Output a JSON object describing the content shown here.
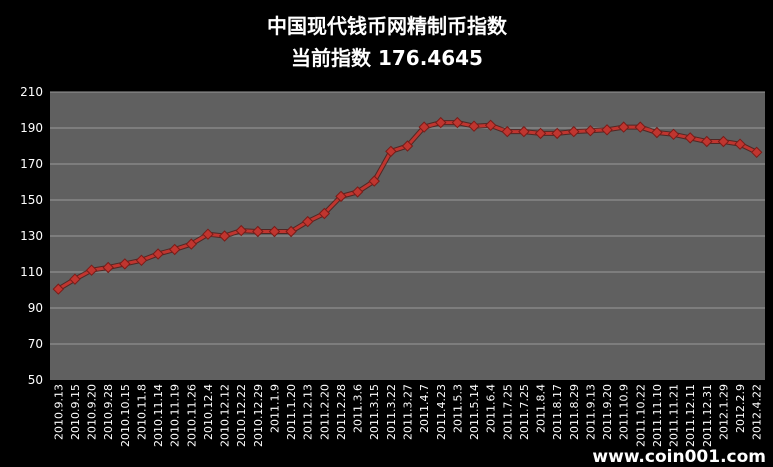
{
  "chart_data": {
    "type": "line",
    "title": "中国现代钱币网精制币指数",
    "subtitle": "当前指数 176.4645",
    "ylim": [
      50,
      210
    ],
    "yticks": [
      50,
      70,
      90,
      110,
      130,
      150,
      170,
      190,
      210
    ],
    "grid": true,
    "legend": "none",
    "colors": {
      "background": "#000000",
      "plot": "#606060",
      "grid": "#9a9a9a",
      "line": "#c0352f",
      "marker": "#c0352f"
    },
    "categories": [
      "2010.9.13",
      "2010.9.15",
      "2010.9.20",
      "2010.9.28",
      "2010.10.15",
      "2010.11.8",
      "2010.11.14",
      "2010.11.19",
      "2010.11.26",
      "2010.12.4",
      "2010.12.12",
      "2010.12.22",
      "2010.12.29",
      "2011.1.9",
      "2011.1.20",
      "2011.2.13",
      "2011.2.20",
      "2011.2.28",
      "2011.3.6",
      "2011.3.15",
      "2011.3.22",
      "2011.3.27",
      "2011.4.7",
      "2011.4.23",
      "2011.5.3",
      "2011.5.14",
      "2011.6.4",
      "2011.7.25",
      "2011.7.25",
      "2011.8.4",
      "2011.8.17",
      "2011.8.29",
      "2011.9.13",
      "2011.9.20",
      "2011.10.9",
      "2011.10.22",
      "2011.11.10",
      "2011.11.21",
      "2011.12.11",
      "2011.12.31",
      "2012.1.29",
      "2012.2.9",
      "2012.4.22"
    ],
    "series": [
      {
        "values": [
          100.5,
          106,
          111,
          112.5,
          114.5,
          116.5,
          120,
          122.5,
          125.5,
          131,
          130,
          133,
          132.5,
          132.5,
          132.5,
          138,
          142.5,
          152,
          154.5,
          160.5,
          177,
          180,
          190.5,
          193,
          193,
          191,
          191.5,
          188,
          188,
          187,
          187,
          188,
          188.5,
          189,
          190.5,
          190.5,
          187.5,
          186.5,
          184.5,
          182.5,
          182.5,
          181,
          176.5
        ]
      }
    ]
  },
  "watermark": "www.coin001.com"
}
